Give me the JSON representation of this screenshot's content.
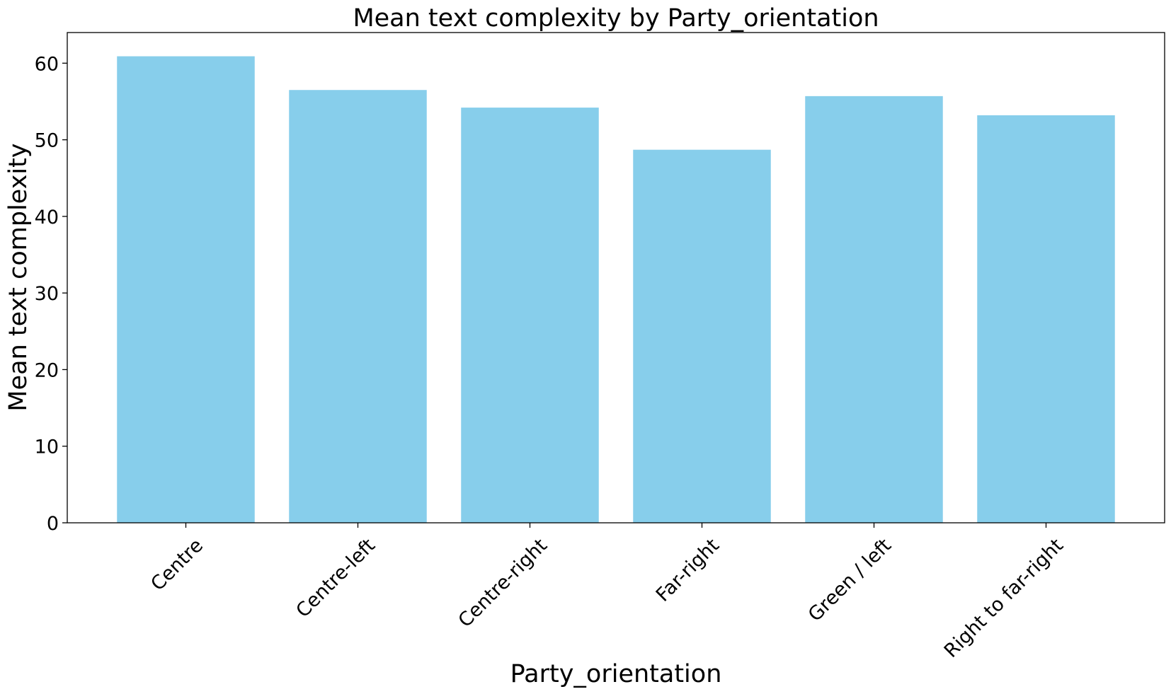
{
  "chart_data": {
    "type": "bar",
    "title": "Mean text complexity by Party_orientation",
    "xlabel": "Party_orientation",
    "ylabel": "Mean text complexity",
    "categories": [
      "Centre",
      "Centre-left",
      "Centre-right",
      "Far-right",
      "Green / left",
      "Right to far-right"
    ],
    "values": [
      60.9,
      56.5,
      54.2,
      48.7,
      55.7,
      53.2
    ],
    "ylim": [
      0,
      64
    ],
    "yticks": [
      0,
      10,
      20,
      30,
      40,
      50,
      60
    ],
    "bar_color": "#87CEEB",
    "grid": false,
    "legend": "none"
  }
}
